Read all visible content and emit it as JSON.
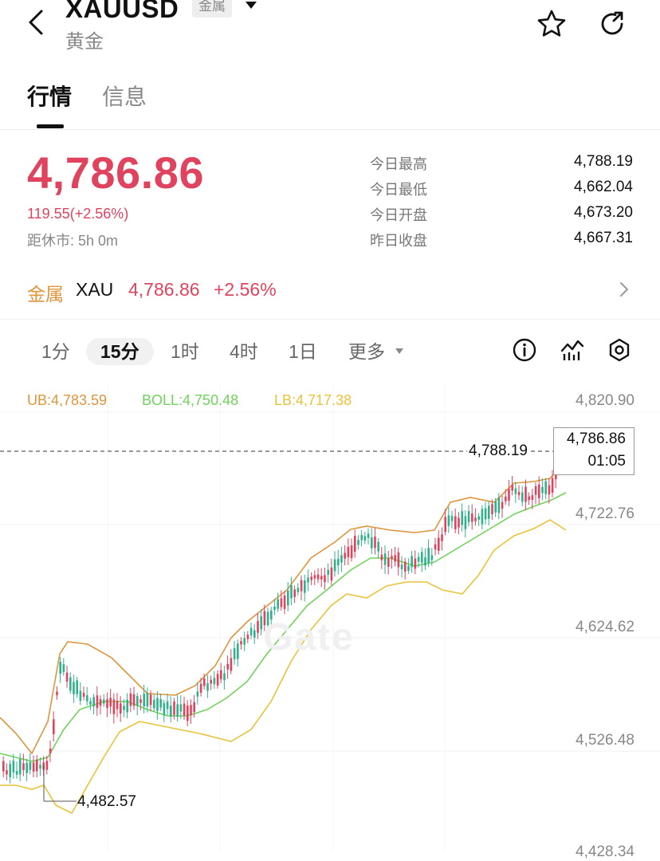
{
  "header": {
    "title": "XAUUSD",
    "badge": "金属",
    "subtitle": "黄金",
    "icons": [
      "back-arrow-icon",
      "dropdown-caret-icon",
      "star-icon",
      "share-icon"
    ]
  },
  "tabs": [
    {
      "label": "行情",
      "active": true
    },
    {
      "label": "信息",
      "active": false
    }
  ],
  "quote": {
    "price": "4,786.86",
    "change": "119.55(+2.56%)",
    "close_in": "距休市: 5h 0m",
    "stats": [
      {
        "label": "今日最高",
        "value": "4,788.19"
      },
      {
        "label": "今日最低",
        "value": "4,662.04"
      },
      {
        "label": "今日开盘",
        "value": "4,673.20"
      },
      {
        "label": "昨日收盘",
        "value": "4,667.31"
      }
    ]
  },
  "related": {
    "tag": "金属",
    "symbol": "XAU",
    "price": "4,786.86",
    "change": "+2.56%"
  },
  "intervals": [
    {
      "label": "1分",
      "active": false
    },
    {
      "label": "15分",
      "active": true
    },
    {
      "label": "1时",
      "active": false
    },
    {
      "label": "4时",
      "active": false
    },
    {
      "label": "1日",
      "active": false
    },
    {
      "label": "更多",
      "active": false
    }
  ],
  "tools": [
    "info-icon",
    "indicator-icon",
    "settings-icon"
  ],
  "indicators": {
    "ub": "UB:4,783.59",
    "boll": "BOLL:4,750.48",
    "lb": "LB:4,717.38"
  },
  "colors": {
    "up": "#e0435e",
    "down": "#2fb28c",
    "ub": "#e0943c",
    "boll": "#6fd35a",
    "lb": "#e9c23a"
  },
  "axis_labels": [
    "4,820.90",
    "4,722.76",
    "4,624.62",
    "4,526.48",
    "4,428.34"
  ],
  "tooltip": {
    "price": "4,786.86",
    "time": "01:05"
  },
  "high_marker": "4,788.19",
  "low_marker": "4,482.57",
  "watermark": "Gate"
}
